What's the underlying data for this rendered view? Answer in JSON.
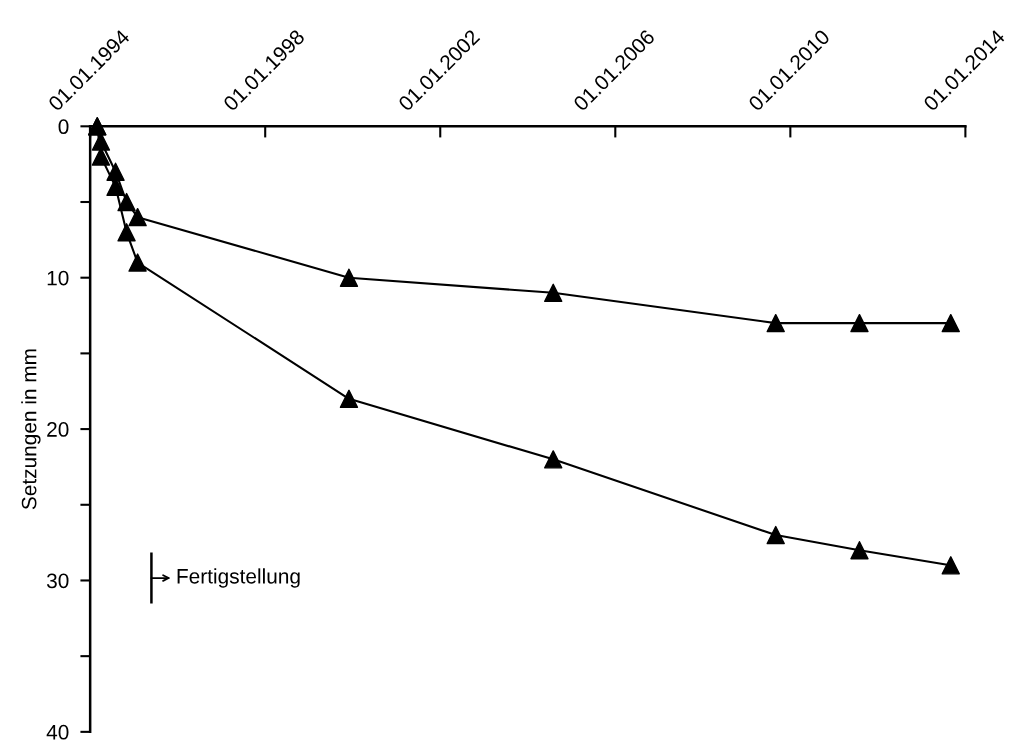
{
  "chart_data": {
    "type": "line",
    "ylabel": "Setzungen in mm",
    "series": [
      {
        "color": "#000000",
        "x": [
          "1994-03-01",
          "1994-04-01",
          "1994-08-01",
          "1994-11-01",
          "1995-02-01",
          "1999-12-01",
          "2004-08-01",
          "2009-09-01",
          "2011-08-01",
          "2013-09-01"
        ],
        "values": [
          0,
          1,
          3,
          5,
          6,
          10,
          11,
          13,
          13,
          13
        ]
      },
      {
        "color": "#000000",
        "x": [
          "1994-03-01",
          "1994-04-01",
          "1994-08-01",
          "1994-11-01",
          "1995-02-01",
          "1999-12-01",
          "2004-08-01",
          "2009-09-01",
          "2011-08-01",
          "2013-09-01"
        ],
        "values": [
          0,
          2,
          4,
          7,
          9,
          18,
          22,
          27,
          28,
          29
        ]
      }
    ],
    "xlim": [
      "1994-01-01",
      "2014-01-01"
    ],
    "xticks": [
      {
        "value": "1994-01-01",
        "label": "01.01.1994"
      },
      {
        "value": "1998-01-01",
        "label": "01.01.1998"
      },
      {
        "value": "2002-01-01",
        "label": "01.01.2002"
      },
      {
        "value": "2006-01-01",
        "label": "01.01.2006"
      },
      {
        "value": "2010-01-01",
        "label": "01.01.2010"
      },
      {
        "value": "2014-01-01",
        "label": "01.01.2014"
      }
    ],
    "ylim": [
      40,
      0
    ],
    "yticks": [
      0,
      {
        "value": 5,
        "label": null
      },
      10,
      {
        "value": 15,
        "label": null
      },
      20,
      {
        "value": 25,
        "label": null
      },
      30,
      {
        "value": 35,
        "label": null
      },
      40
    ],
    "annotations": [
      "Fertigstellung"
    ],
    "marker": "triangle",
    "line_style": "solid",
    "grid": false,
    "legend": false
  }
}
